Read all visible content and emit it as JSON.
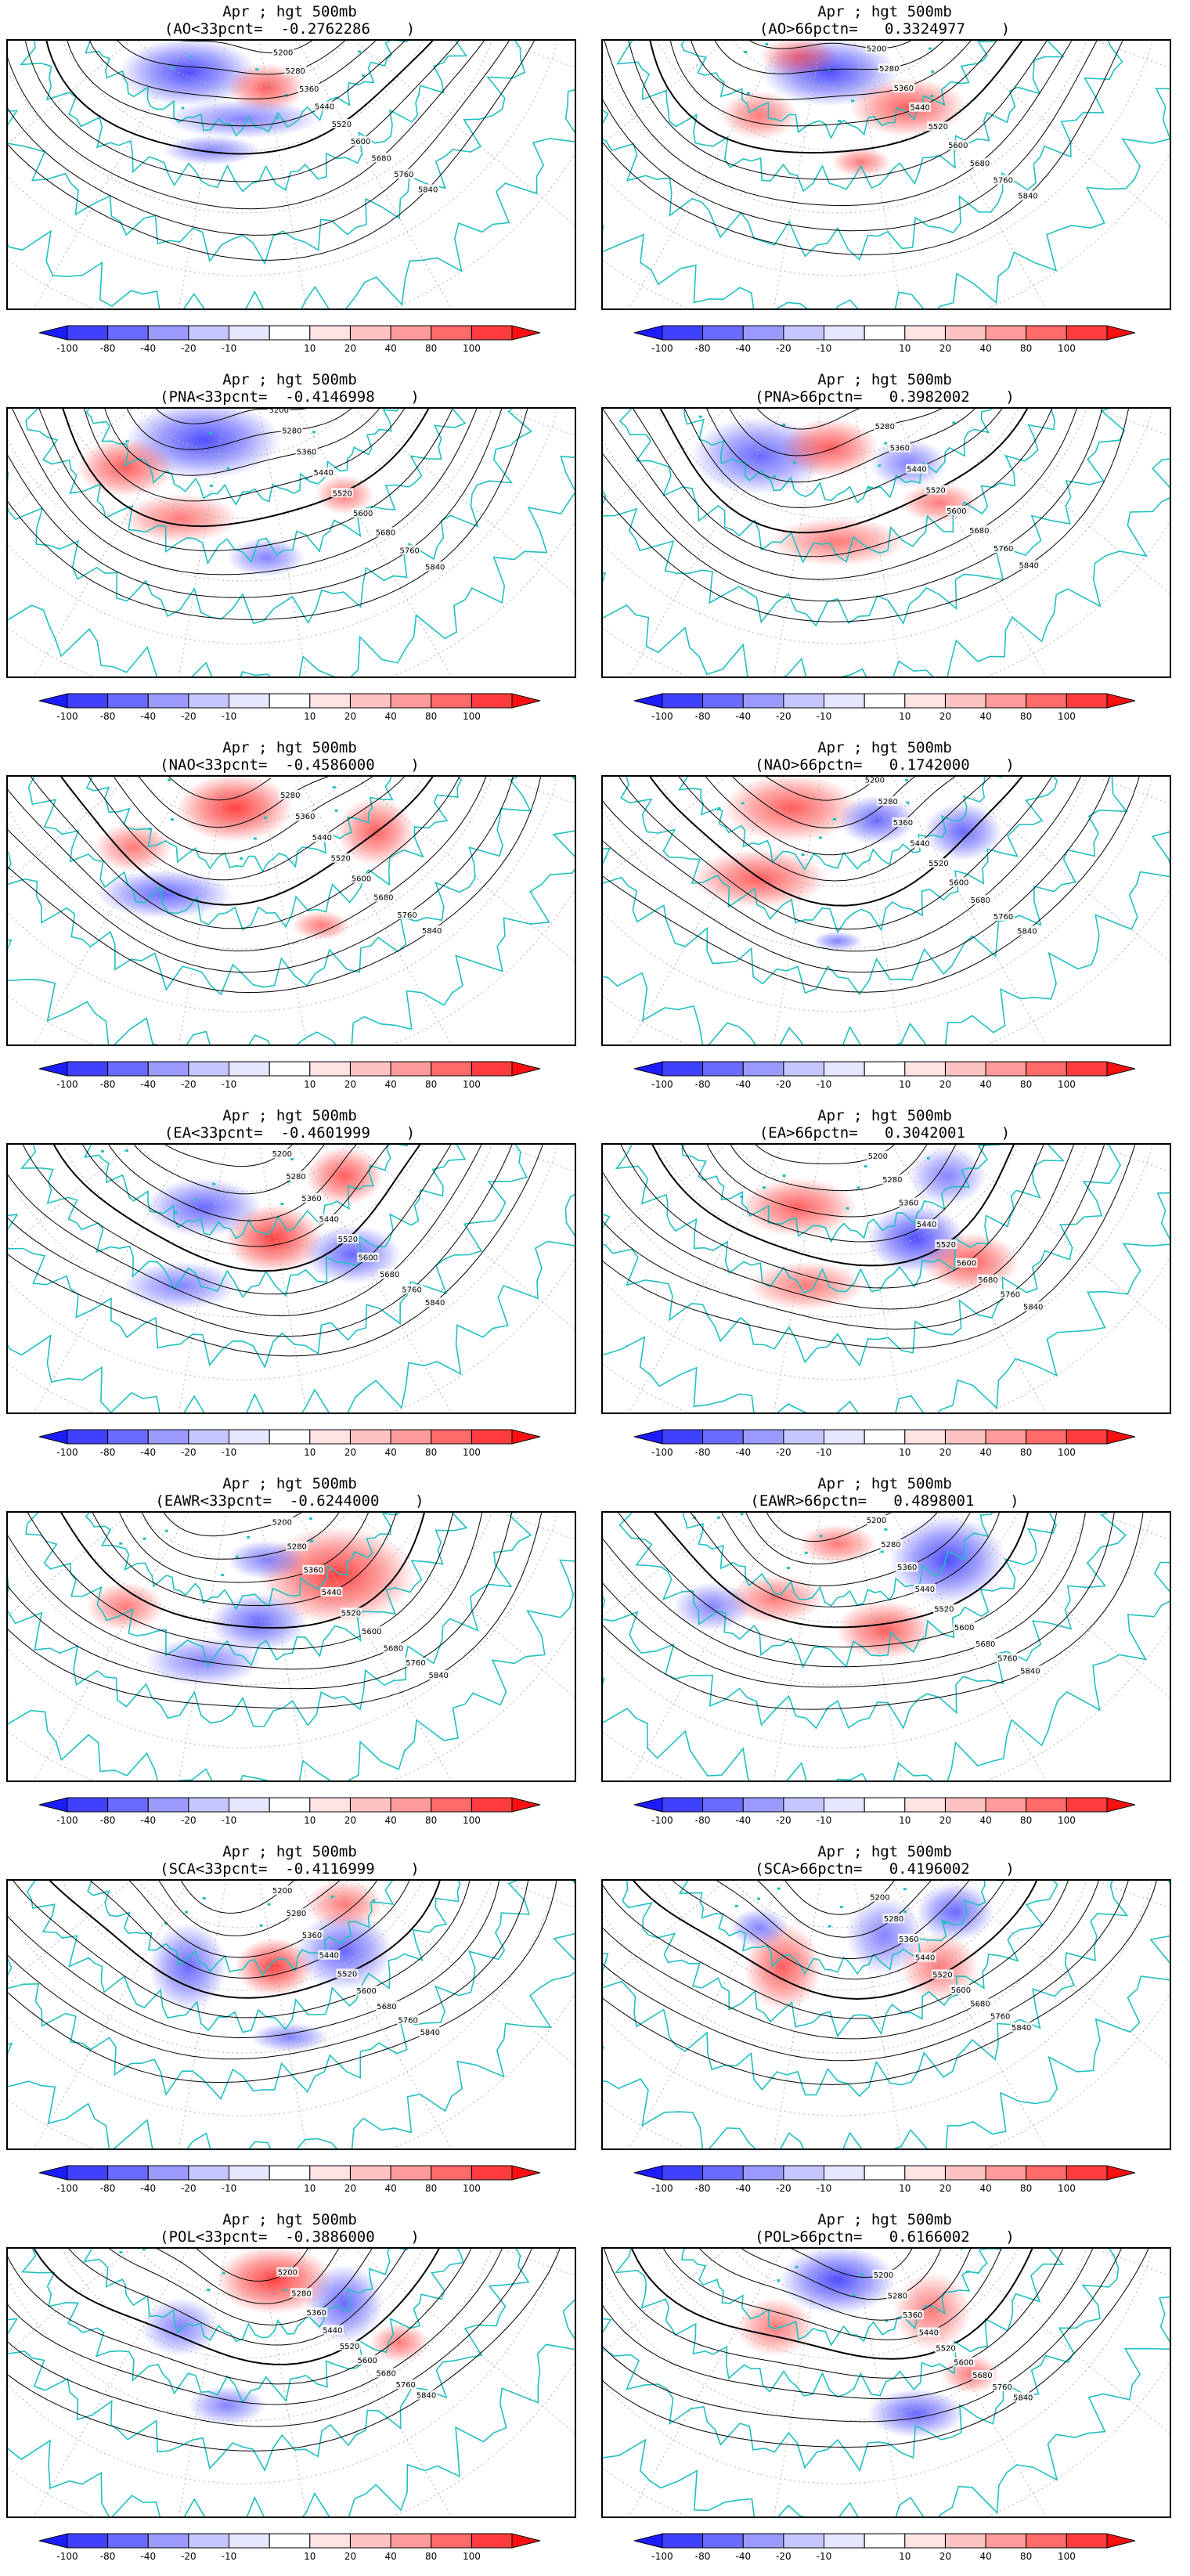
{
  "colors": {
    "coast": "#20c0c0",
    "contour": "#000000",
    "grid_lines": "#b0b0b0",
    "negative_strong": "#3030ff",
    "positive_strong": "#ff2020"
  },
  "colorbar": {
    "labels": [
      "-100",
      "-80",
      "-40",
      "-20",
      "-10",
      "10",
      "20",
      "40",
      "80",
      "100"
    ],
    "colors": [
      "#1c1cff",
      "#4040ff",
      "#6a6aff",
      "#9a9aff",
      "#c6c6ff",
      "#e6e6ff",
      "#ffffff",
      "#ffe2e2",
      "#ffc2c2",
      "#ff9a9a",
      "#ff6a6a",
      "#ff3c3c",
      "#ff1010"
    ]
  },
  "contour_labels": [
    "5200",
    "5280",
    "5360",
    "5440",
    "5520",
    "5600",
    "5680",
    "5760",
    "5840"
  ],
  "panels": [
    {
      "line1": "Apr ; hgt 500mb",
      "line2": "(AO<33pcnt=  -0.2762286    )",
      "pattern": "AO-neg"
    },
    {
      "line1": "Apr ; hgt 500mb",
      "line2": "(AO>66pctn=   0.3324977    )",
      "pattern": "AO-pos"
    },
    {
      "line1": "Apr ; hgt 500mb",
      "line2": "(PNA<33pcnt=  -0.4146998    )",
      "pattern": "PNA-neg"
    },
    {
      "line1": "Apr ; hgt 500mb",
      "line2": "(PNA>66pctn=   0.3982002    )",
      "pattern": "PNA-pos"
    },
    {
      "line1": "Apr ; hgt 500mb",
      "line2": "(NAO<33pcnt=  -0.4586000    )",
      "pattern": "NAO-neg"
    },
    {
      "line1": "Apr ; hgt 500mb",
      "line2": "(NAO>66pctn=   0.1742000    )",
      "pattern": "NAO-pos"
    },
    {
      "line1": "Apr ; hgt 500mb",
      "line2": "(EA<33pcnt=  -0.4601999    )",
      "pattern": "EA-neg"
    },
    {
      "line1": "Apr ; hgt 500mb",
      "line2": "(EA>66pctn=   0.3042001    )",
      "pattern": "EA-pos"
    },
    {
      "line1": "Apr ; hgt 500mb",
      "line2": "(EAWR<33pcnt=  -0.6244000    )",
      "pattern": "EAWR-neg"
    },
    {
      "line1": "Apr ; hgt 500mb",
      "line2": "(EAWR>66pctn=   0.4898001    )",
      "pattern": "EAWR-pos"
    },
    {
      "line1": "Apr ; hgt 500mb",
      "line2": "(SCA<33pcnt=  -0.4116999    )",
      "pattern": "SCA-neg"
    },
    {
      "line1": "Apr ; hgt 500mb",
      "line2": "(SCA>66pctn=   0.4196002    )",
      "pattern": "SCA-pos"
    },
    {
      "line1": "Apr ; hgt 500mb",
      "line2": "(POL<33pcnt=  -0.3886000    )",
      "pattern": "POL-neg"
    },
    {
      "line1": "Apr ; hgt 500mb",
      "line2": "(POL>66pctn=   0.6166002    )",
      "pattern": "POL-pos"
    }
  ]
}
